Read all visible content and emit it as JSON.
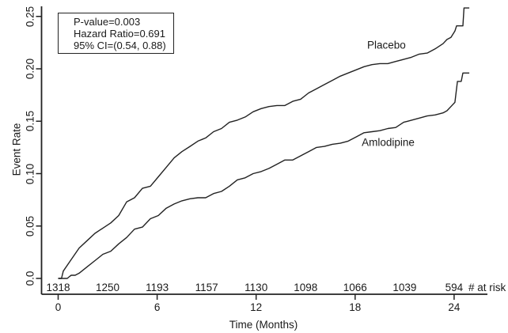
{
  "chart_data": {
    "type": "line",
    "title": "",
    "xlabel": "Time (Months)",
    "ylabel": "Event Rate",
    "grid": false,
    "legend": "inline-labels",
    "x_axis": {
      "ticks": [
        0,
        6,
        12,
        18,
        24
      ],
      "range": [
        0,
        26
      ]
    },
    "y_axis": {
      "tick_values": [
        0,
        0.05,
        0.1,
        0.15,
        0.2,
        0.25
      ],
      "tick_labels": [
        "0.0",
        "0.05",
        "0.10",
        "0.15",
        "0.20",
        "0.25"
      ],
      "range": [
        0,
        0.26
      ]
    },
    "annotation": {
      "lines": [
        "P-value=0.003",
        "Hazard Ratio=0.691",
        "95% CI=(0.54, 0.88)"
      ]
    },
    "series": [
      {
        "name": "Placebo",
        "label_at": [
          19.9,
          0.223
        ],
        "points": [
          [
            0,
            0
          ],
          [
            0.2,
            0
          ],
          [
            0.31,
            0.007
          ],
          [
            0.79,
            0.018
          ],
          [
            1.27,
            0.029
          ],
          [
            1.75,
            0.036
          ],
          [
            2.23,
            0.043
          ],
          [
            2.71,
            0.048
          ],
          [
            3.19,
            0.053
          ],
          [
            3.67,
            0.06
          ],
          [
            4.15,
            0.073
          ],
          [
            4.63,
            0.077
          ],
          [
            5.11,
            0.086
          ],
          [
            5.59,
            0.088
          ],
          [
            6.07,
            0.097
          ],
          [
            6.55,
            0.106
          ],
          [
            7.03,
            0.115
          ],
          [
            7.5,
            0.121
          ],
          [
            7.99,
            0.126
          ],
          [
            8.47,
            0.131
          ],
          [
            8.94,
            0.134
          ],
          [
            9.42,
            0.14
          ],
          [
            9.9,
            0.143
          ],
          [
            10.38,
            0.149
          ],
          [
            10.86,
            0.151
          ],
          [
            11.34,
            0.154
          ],
          [
            11.82,
            0.159
          ],
          [
            12.3,
            0.162
          ],
          [
            12.78,
            0.164
          ],
          [
            13.26,
            0.165
          ],
          [
            13.74,
            0.165
          ],
          [
            14.22,
            0.169
          ],
          [
            14.7,
            0.171
          ],
          [
            15.18,
            0.177
          ],
          [
            15.66,
            0.181
          ],
          [
            16.14,
            0.185
          ],
          [
            16.62,
            0.189
          ],
          [
            17.1,
            0.193
          ],
          [
            17.58,
            0.196
          ],
          [
            18.06,
            0.199
          ],
          [
            18.54,
            0.202
          ],
          [
            19.02,
            0.204
          ],
          [
            19.5,
            0.205
          ],
          [
            19.98,
            0.205
          ],
          [
            20.46,
            0.207
          ],
          [
            20.94,
            0.209
          ],
          [
            21.41,
            0.211
          ],
          [
            21.89,
            0.214
          ],
          [
            22.37,
            0.215
          ],
          [
            22.85,
            0.219
          ],
          [
            23.33,
            0.224
          ],
          [
            23.57,
            0.228
          ],
          [
            23.81,
            0.23
          ],
          [
            24.05,
            0.236
          ],
          [
            24.15,
            0.241
          ],
          [
            24.53,
            0.241
          ],
          [
            24.6,
            0.258
          ],
          [
            24.92,
            0.258
          ]
        ]
      },
      {
        "name": "Amlodipine",
        "label_at": [
          20.0,
          0.13
        ],
        "points": [
          [
            0,
            0
          ],
          [
            0.55,
            0
          ],
          [
            0.7,
            0.002
          ],
          [
            0.79,
            0.003
          ],
          [
            1.03,
            0.003
          ],
          [
            1.27,
            0.005
          ],
          [
            1.75,
            0.011
          ],
          [
            2.23,
            0.017
          ],
          [
            2.71,
            0.023
          ],
          [
            3.19,
            0.026
          ],
          [
            3.67,
            0.033
          ],
          [
            4.15,
            0.039
          ],
          [
            4.63,
            0.047
          ],
          [
            5.11,
            0.049
          ],
          [
            5.59,
            0.057
          ],
          [
            6.07,
            0.06
          ],
          [
            6.55,
            0.067
          ],
          [
            7.03,
            0.071
          ],
          [
            7.5,
            0.074
          ],
          [
            7.99,
            0.076
          ],
          [
            8.47,
            0.077
          ],
          [
            8.94,
            0.077
          ],
          [
            9.42,
            0.081
          ],
          [
            9.9,
            0.083
          ],
          [
            10.38,
            0.088
          ],
          [
            10.86,
            0.094
          ],
          [
            11.34,
            0.096
          ],
          [
            11.82,
            0.1
          ],
          [
            12.3,
            0.102
          ],
          [
            12.78,
            0.105
          ],
          [
            13.26,
            0.109
          ],
          [
            13.74,
            0.113
          ],
          [
            14.22,
            0.113
          ],
          [
            14.7,
            0.117
          ],
          [
            15.18,
            0.121
          ],
          [
            15.66,
            0.125
          ],
          [
            16.14,
            0.126
          ],
          [
            16.62,
            0.128
          ],
          [
            17.1,
            0.129
          ],
          [
            17.58,
            0.131
          ],
          [
            18.06,
            0.135
          ],
          [
            18.54,
            0.139
          ],
          [
            19.02,
            0.14
          ],
          [
            19.5,
            0.141
          ],
          [
            19.98,
            0.143
          ],
          [
            20.46,
            0.144
          ],
          [
            20.94,
            0.149
          ],
          [
            21.18,
            0.15
          ],
          [
            21.89,
            0.153
          ],
          [
            22.37,
            0.155
          ],
          [
            22.85,
            0.156
          ],
          [
            23.33,
            0.158
          ],
          [
            23.57,
            0.16
          ],
          [
            23.81,
            0.164
          ],
          [
            24.05,
            0.168
          ],
          [
            24.2,
            0.188
          ],
          [
            24.43,
            0.188
          ],
          [
            24.53,
            0.196
          ],
          [
            24.92,
            0.196
          ]
        ]
      }
    ],
    "at_risk": {
      "label": "# at risk",
      "times": [
        0,
        3,
        6,
        9,
        12,
        15,
        18,
        21,
        24
      ],
      "counts": [
        1318,
        1250,
        1193,
        1157,
        1130,
        1098,
        1066,
        1039,
        594
      ]
    },
    "colors": {
      "line": "#222222",
      "text": "#1a1a1a",
      "background": "#ffffff"
    }
  }
}
